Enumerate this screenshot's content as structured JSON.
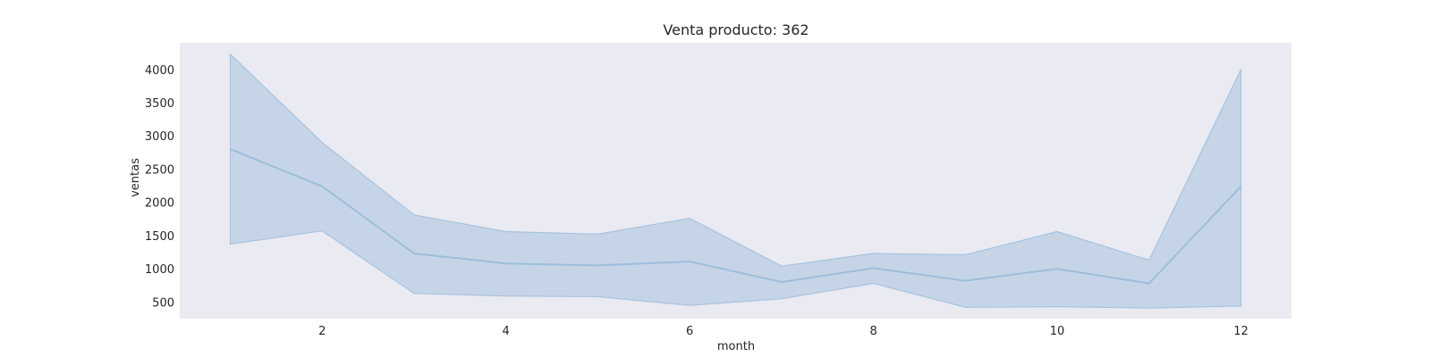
{
  "chart_data": {
    "type": "line",
    "title": "Venta producto: 362",
    "xlabel": "month",
    "ylabel": "ventas",
    "x": [
      1,
      2,
      3,
      4,
      5,
      6,
      7,
      8,
      9,
      10,
      11,
      12
    ],
    "xlim": [
      0.45,
      12.55
    ],
    "ylim": [
      250,
      4400
    ],
    "xticks": [
      2,
      4,
      6,
      8,
      10,
      12
    ],
    "yticks": [
      500,
      1000,
      1500,
      2000,
      2500,
      3000,
      3500,
      4000
    ],
    "grid": false,
    "series": [
      {
        "values": [
          2800,
          2240,
          1230,
          1080,
          1050,
          1110,
          800,
          1010,
          820,
          1000,
          780,
          2240
        ],
        "ci_lower": [
          1370,
          1570,
          630,
          590,
          580,
          450,
          550,
          780,
          420,
          430,
          410,
          440
        ],
        "ci_upper": [
          4230,
          2900,
          1810,
          1560,
          1520,
          1760,
          1040,
          1230,
          1210,
          1560,
          1130,
          4000
        ],
        "color": "#a6c3de"
      }
    ],
    "plot_background": "#eaeaf2"
  }
}
